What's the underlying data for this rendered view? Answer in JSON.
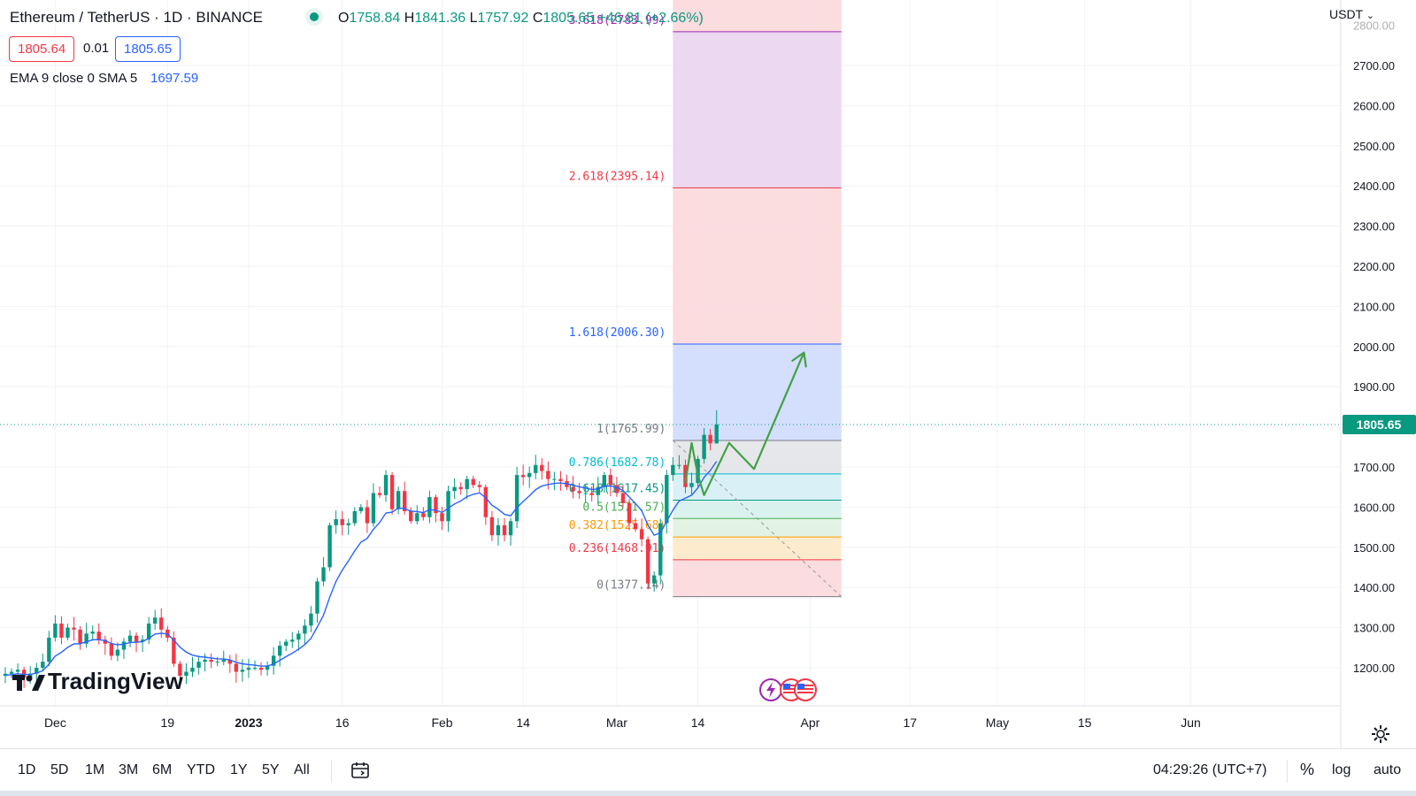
{
  "header": {
    "symbol": "Ethereum / TetherUS · 1D · BINANCE",
    "ohlc": {
      "open_label": "O",
      "open": "1758.84",
      "high_label": "H",
      "high": "1841.36",
      "low_label": "L",
      "low": "1757.92",
      "close_label": "C",
      "close": "1805.65",
      "change": "+46.81 (+2.66%)"
    },
    "bid": "1805.64",
    "spread": "0.01",
    "ask": "1805.65",
    "indicator_label": "EMA 9 close 0 SMA 5",
    "indicator_value": "1697.59"
  },
  "price_axis": {
    "currency": "USDT",
    "current_price_label": "1805.65"
  },
  "logo": {
    "text": "TradingView"
  },
  "bottom_toolbar": {
    "ranges": [
      "1D",
      "5D",
      "1M",
      "3M",
      "6M",
      "YTD",
      "1Y",
      "5Y",
      "All"
    ],
    "clock": "04:29:26 (UTC+7)",
    "percent": "%",
    "log": "log",
    "auto": "auto"
  },
  "colors": {
    "up": "#089981",
    "down": "#f23645",
    "ema": "#2962ff",
    "projection": "#43a047"
  },
  "icons": [
    "calendar-range-icon",
    "gear-icon",
    "chevron-down-icon",
    "event-lightning-icon",
    "us-flag-icon"
  ],
  "chart_data": {
    "type": "candlestick",
    "symbol": "ETHUSDT",
    "interval": "1D",
    "ylim": [
      1130,
      2880
    ],
    "y_ticks": [
      1200,
      1300,
      1400,
      1500,
      1600,
      1700,
      1800,
      1900,
      2000,
      2100,
      2200,
      2300,
      2400,
      2500,
      2600,
      2700
    ],
    "x_range": [
      "2022-11-23",
      "2023-06-10"
    ],
    "x_ticks": [
      {
        "label": "Dec",
        "date": "2022-12-01"
      },
      {
        "label": "19",
        "date": "2022-12-19"
      },
      {
        "label": "2023",
        "date": "2023-01-01"
      },
      {
        "label": "16",
        "date": "2023-01-16"
      },
      {
        "label": "Feb",
        "date": "2023-02-01"
      },
      {
        "label": "14",
        "date": "2023-02-14"
      },
      {
        "label": "Mar",
        "date": "2023-03-01"
      },
      {
        "label": "14",
        "date": "2023-03-14"
      },
      {
        "label": "Apr",
        "date": "2023-04-01"
      },
      {
        "label": "17",
        "date": "2023-04-17"
      },
      {
        "label": "May",
        "date": "2023-05-01"
      },
      {
        "label": "15",
        "date": "2023-05-15"
      },
      {
        "label": "Jun",
        "date": "2023-06-01"
      }
    ],
    "start_date": "2022-11-23",
    "close_start": 1180,
    "closes": [
      1185,
      1190,
      1195,
      1175,
      1185,
      1200,
      1215,
      1275,
      1310,
      1275,
      1300,
      1295,
      1260,
      1285,
      1290,
      1270,
      1260,
      1230,
      1245,
      1265,
      1280,
      1265,
      1270,
      1310,
      1325,
      1295,
      1275,
      1210,
      1180,
      1190,
      1200,
      1215,
      1220,
      1215,
      1215,
      1220,
      1210,
      1190,
      1195,
      1200,
      1200,
      1195,
      1205,
      1230,
      1255,
      1265,
      1270,
      1285,
      1305,
      1335,
      1415,
      1450,
      1555,
      1570,
      1555,
      1560,
      1590,
      1600,
      1560,
      1635,
      1630,
      1680,
      1595,
      1640,
      1590,
      1565,
      1585,
      1575,
      1625,
      1585,
      1565,
      1640,
      1650,
      1645,
      1670,
      1655,
      1650,
      1575,
      1530,
      1555,
      1530,
      1565,
      1680,
      1675,
      1685,
      1705,
      1690,
      1670,
      1670,
      1665,
      1650,
      1640,
      1635,
      1635,
      1630,
      1650,
      1680,
      1655,
      1635,
      1610,
      1560,
      1545,
      1520,
      1410,
      1430,
      1560,
      1680,
      1705,
      1705,
      1650,
      1660,
      1720,
      1780,
      1758.84,
      1805.65
    ],
    "candle_rects": [
      {
        "x_date": "2022-11-23"
      }
    ],
    "ema": {
      "label": "EMA 9 close 0 SMA 5",
      "last": 1697.59
    },
    "fibonacci_extension": {
      "start_date": "2023-03-10",
      "end_date": "2023-04-06",
      "levels": [
        {
          "ratio": "0",
          "price": 1377.14,
          "label": "0(1377.14)",
          "color": "#787b86"
        },
        {
          "ratio": "0.236",
          "price": 1468.91,
          "label": "0.236(1468.91)",
          "color": "#f23645"
        },
        {
          "ratio": "0.382",
          "price": 1525.68,
          "label": "0.382(1525.68)",
          "color": "#ff9800"
        },
        {
          "ratio": "0.5",
          "price": 1571.57,
          "label": "0.5(1571.57)",
          "color": "#4caf50"
        },
        {
          "ratio": "0.618",
          "price": 1617.45,
          "label": "0.618(1617.45)",
          "color": "#089981"
        },
        {
          "ratio": "0.786",
          "price": 1682.78,
          "label": "0.786(1682.78)",
          "color": "#00bcd4"
        },
        {
          "ratio": "1",
          "price": 1765.99,
          "label": "1(1765.99)",
          "color": "#787b86"
        },
        {
          "ratio": "1.618",
          "price": 2006.3,
          "label": "1.618(2006.30)",
          "color": "#2962ff"
        },
        {
          "ratio": "2.618",
          "price": 2395.14,
          "label": "2.618(2395.14)",
          "color": "#f23645"
        },
        {
          "ratio": "3.618",
          "price": 2783.99,
          "label": "3.618(2783.99)",
          "color": "#9c27b0"
        }
      ]
    },
    "projection_path": [
      {
        "date": "2023-03-12",
        "price": 1660
      },
      {
        "date": "2023-03-13",
        "price": 1760
      },
      {
        "date": "2023-03-14",
        "price": 1680
      },
      {
        "date": "2023-03-15",
        "price": 1630
      },
      {
        "date": "2023-03-19",
        "price": 1760
      },
      {
        "date": "2023-03-23",
        "price": 1695
      },
      {
        "date": "2023-03-31",
        "price": 1985
      }
    ]
  }
}
